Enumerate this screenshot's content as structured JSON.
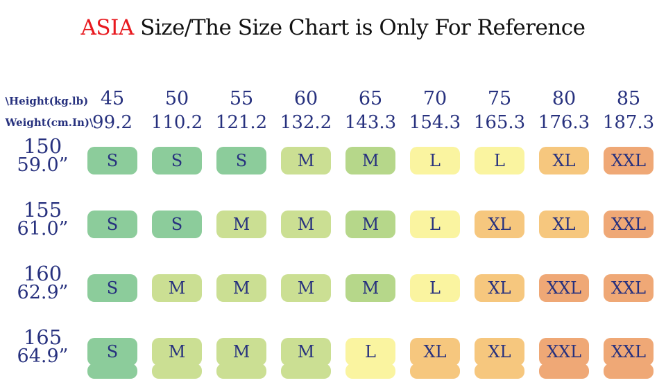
{
  "title": {
    "highlight": "ASIA",
    "rest": " Size/The Size Chart is Only For Reference"
  },
  "palette": {
    "s": "#8CCC9B",
    "m1": "#CBDF93",
    "m2": "#B6D78A",
    "l": "#FAF4A0",
    "xl": "#F6C77E",
    "xxl": "#EFA876",
    "text_navy": "#27317E",
    "title_red": "#E8191F",
    "title_black": "#111111"
  },
  "header": {
    "corner_top": "\\Height(kg.lb)",
    "corner_bottom": "Weight(cm.In)\\",
    "columns": [
      {
        "kg": "45",
        "lb": "99.2"
      },
      {
        "kg": "50",
        "lb": "110.2"
      },
      {
        "kg": "55",
        "lb": "121.2"
      },
      {
        "kg": "60",
        "lb": "132.2"
      },
      {
        "kg": "65",
        "lb": "143.3"
      },
      {
        "kg": "70",
        "lb": "154.3"
      },
      {
        "kg": "75",
        "lb": "165.3"
      },
      {
        "kg": "80",
        "lb": "176.3"
      },
      {
        "kg": "85",
        "lb": "187.3"
      }
    ]
  },
  "rows": [
    {
      "height_cm": "150",
      "height_in": "59.0”",
      "cells": [
        {
          "size": "S",
          "color": "s"
        },
        {
          "size": "S",
          "color": "s"
        },
        {
          "size": "S",
          "color": "s"
        },
        {
          "size": "M",
          "color": "m1"
        },
        {
          "size": "M",
          "color": "m2"
        },
        {
          "size": "L",
          "color": "l"
        },
        {
          "size": "L",
          "color": "l"
        },
        {
          "size": "XL",
          "color": "xl"
        },
        {
          "size": "XXL",
          "color": "xxl"
        }
      ]
    },
    {
      "height_cm": "155",
      "height_in": "61.0”",
      "cells": [
        {
          "size": "S",
          "color": "s"
        },
        {
          "size": "S",
          "color": "s"
        },
        {
          "size": "M",
          "color": "m1"
        },
        {
          "size": "M",
          "color": "m1"
        },
        {
          "size": "M",
          "color": "m2"
        },
        {
          "size": "L",
          "color": "l"
        },
        {
          "size": "XL",
          "color": "xl"
        },
        {
          "size": "XL",
          "color": "xl"
        },
        {
          "size": "XXL",
          "color": "xxl"
        }
      ]
    },
    {
      "height_cm": "160",
      "height_in": "62.9”",
      "cells": [
        {
          "size": "S",
          "color": "s"
        },
        {
          "size": "M",
          "color": "m1"
        },
        {
          "size": "M",
          "color": "m1"
        },
        {
          "size": "M",
          "color": "m1"
        },
        {
          "size": "M",
          "color": "m2"
        },
        {
          "size": "L",
          "color": "l"
        },
        {
          "size": "XL",
          "color": "xl"
        },
        {
          "size": "XXL",
          "color": "xxl"
        },
        {
          "size": "XXL",
          "color": "xxl"
        }
      ]
    },
    {
      "height_cm": "165",
      "height_in": "64.9”",
      "cells": [
        {
          "size": "S",
          "color": "s"
        },
        {
          "size": "M",
          "color": "m1"
        },
        {
          "size": "M",
          "color": "m1"
        },
        {
          "size": "M",
          "color": "m1"
        },
        {
          "size": "L",
          "color": "l"
        },
        {
          "size": "XL",
          "color": "xl"
        },
        {
          "size": "XL",
          "color": "xl"
        },
        {
          "size": "XXL",
          "color": "xxl"
        },
        {
          "size": "XXL",
          "color": "xxl"
        }
      ]
    }
  ],
  "peek_row": {
    "colors": [
      "s",
      "m1",
      "m1",
      "m1",
      "l",
      "xl",
      "xl",
      "xxl",
      "xxl"
    ]
  },
  "chart_data": {
    "type": "table",
    "title": "ASIA Size/The Size Chart is Only For Reference",
    "corner_label_top": "\\Height(kg.lb)",
    "corner_label_bottom": "Weight(cm.In)\\",
    "weight_kg": [
      45,
      50,
      55,
      60,
      65,
      70,
      75,
      80,
      85
    ],
    "weight_lb": [
      99.2,
      110.2,
      121.2,
      132.2,
      143.3,
      154.3,
      165.3,
      176.3,
      187.3
    ],
    "rows": [
      {
        "height_cm": 150,
        "height_in": "59.0”",
        "sizes": [
          "S",
          "S",
          "S",
          "M",
          "M",
          "L",
          "L",
          "XL",
          "XXL"
        ]
      },
      {
        "height_cm": 155,
        "height_in": "61.0”",
        "sizes": [
          "S",
          "S",
          "M",
          "M",
          "M",
          "L",
          "XL",
          "XL",
          "XXL"
        ]
      },
      {
        "height_cm": 160,
        "height_in": "62.9”",
        "sizes": [
          "S",
          "M",
          "M",
          "M",
          "M",
          "L",
          "XL",
          "XXL",
          "XXL"
        ]
      },
      {
        "height_cm": 165,
        "height_in": "64.9”",
        "sizes": [
          "S",
          "M",
          "M",
          "M",
          "L",
          "XL",
          "XL",
          "XXL",
          "XXL"
        ]
      }
    ]
  }
}
